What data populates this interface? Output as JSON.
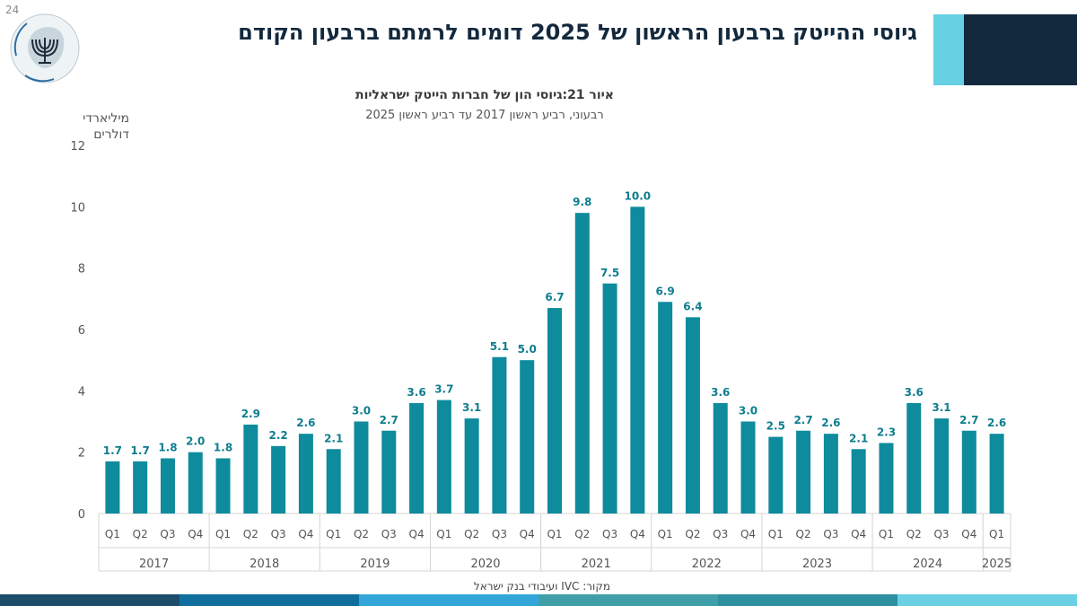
{
  "page_number": "24",
  "slide_title": "גיוסי ההייטק ברבעון הראשון של 2025 דומים לרמתם ברבעון הקודם",
  "figure": {
    "title": "איור 21:גיוסי הון של חברות הייטק ישראליות",
    "subtitle": "רבעוני, רביע ראשון 2017 עד רביע ראשון 2025"
  },
  "source": "מקור: IVC ועיבודי בנק ישראל",
  "colors": {
    "bar": "#0e8b9c",
    "label": "#0e7d8f",
    "title": "#13293d",
    "deco_light": "#67d0e3",
    "deco_dark": "#13293d",
    "bottom_bar": [
      "#1c4d6b",
      "#0f6e9c",
      "#33a6d9",
      "#3f9fa8",
      "#2d8fa0",
      "#6ad0e4"
    ]
  },
  "chart_data": {
    "type": "bar",
    "title": "איור 21:גיוסי הון של חברות הייטק ישראליות",
    "subtitle": "רבעוני, רביע ראשון 2017 עד רביע ראשון 2025",
    "ylabel": "מיליארדי דולרים",
    "ylim": [
      0,
      12
    ],
    "yticks": [
      0,
      2,
      4,
      6,
      8,
      10,
      12
    ],
    "grid": false,
    "categories": [
      "Q1",
      "Q2",
      "Q3",
      "Q4",
      "Q1",
      "Q2",
      "Q3",
      "Q4",
      "Q1",
      "Q2",
      "Q3",
      "Q4",
      "Q1",
      "Q2",
      "Q3",
      "Q4",
      "Q1",
      "Q2",
      "Q3",
      "Q4",
      "Q1",
      "Q2",
      "Q3",
      "Q4",
      "Q1",
      "Q2",
      "Q3",
      "Q4",
      "Q1",
      "Q2",
      "Q3",
      "Q4",
      "Q1"
    ],
    "years": [
      {
        "label": "2017",
        "count": 4
      },
      {
        "label": "2018",
        "count": 4
      },
      {
        "label": "2019",
        "count": 4
      },
      {
        "label": "2020",
        "count": 4
      },
      {
        "label": "2021",
        "count": 4
      },
      {
        "label": "2022",
        "count": 4
      },
      {
        "label": "2023",
        "count": 4
      },
      {
        "label": "2024",
        "count": 4
      },
      {
        "label": "2025",
        "count": 1
      }
    ],
    "values": [
      1.7,
      1.7,
      1.8,
      2.0,
      1.8,
      2.9,
      2.2,
      2.6,
      2.1,
      3.0,
      2.7,
      3.6,
      3.7,
      3.1,
      5.1,
      5.0,
      6.7,
      9.8,
      7.5,
      10.0,
      6.9,
      6.4,
      3.6,
      3.0,
      2.5,
      2.7,
      2.6,
      2.1,
      2.3,
      3.6,
      3.1,
      2.7,
      2.6
    ],
    "data_labels": [
      "1.7",
      "1.7",
      "1.8",
      "2.0",
      "1.8",
      "2.9",
      "2.2",
      "2.6",
      "2.1",
      "3.0",
      "2.7",
      "3.6",
      "3.7",
      "3.1",
      "5.1",
      "5.0",
      "6.7",
      "9.8",
      "7.5",
      "10.0",
      "6.9",
      "6.4",
      "3.6",
      "3.0",
      "2.5",
      "2.7",
      "2.6",
      "2.1",
      "2.3",
      "3.6",
      "3.1",
      "2.7",
      "2.6"
    ]
  }
}
